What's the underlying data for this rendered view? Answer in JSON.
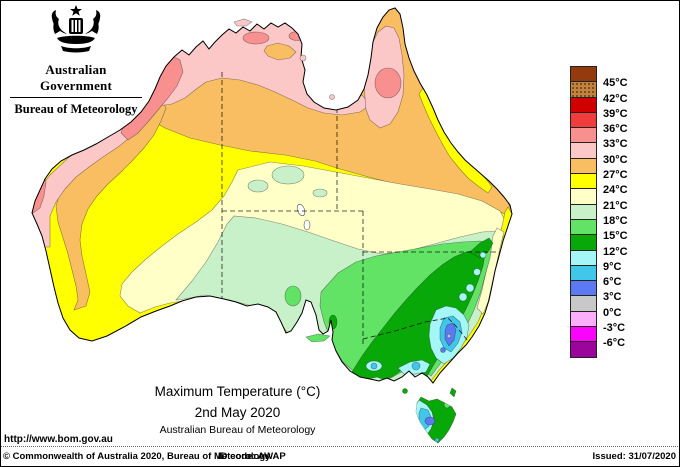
{
  "logo": {
    "gov": "Australian Government",
    "bureau": "Bureau of Meteorology"
  },
  "map_title": {
    "line1": "Maximum Temperature (°C)",
    "line2": "2nd May 2020",
    "line3": "Australian Bureau of Meteorology"
  },
  "url_text": "http://www.bom.gov.au",
  "footer": {
    "copyright": "© Commonwealth of Australia 2020, Bureau of Meteorology",
    "id_code": "ID code: AWAP",
    "issued": "Issued: 31/07/2020"
  },
  "legend": {
    "units": "°C",
    "entries": [
      {
        "label": "45°C",
        "color": "#933A0E",
        "speckled": false
      },
      {
        "label": "42°C",
        "color": "#C08440",
        "speckled": true
      },
      {
        "label": "39°C",
        "color": "#D00000",
        "speckled": false
      },
      {
        "label": "36°C",
        "color": "#F03C3C",
        "speckled": false
      },
      {
        "label": "33°C",
        "color": "#F99090",
        "speckled": false
      },
      {
        "label": "30°C",
        "color": "#FBC7C7",
        "speckled": false
      },
      {
        "label": "27°C",
        "color": "#F9BE62",
        "speckled": false
      },
      {
        "label": "24°C",
        "color": "#FFFF00",
        "speckled": false
      },
      {
        "label": "21°C",
        "color": "#FFFFC8",
        "speckled": false
      },
      {
        "label": "18°C",
        "color": "#C9F1C9",
        "speckled": false
      },
      {
        "label": "15°C",
        "color": "#62E366",
        "speckled": false
      },
      {
        "label": "12°C",
        "color": "#07A807",
        "speckled": false
      },
      {
        "label": "9°C",
        "color": "#A5F7F7",
        "speckled": false
      },
      {
        "label": "6°C",
        "color": "#40C7E9",
        "speckled": false
      },
      {
        "label": "3°C",
        "color": "#5C78F2",
        "speckled": false
      },
      {
        "label": "0°C",
        "color": "#C8C8C8",
        "speckled": false
      },
      {
        "label": "-3°C",
        "color": "#FBAFFB",
        "speckled": false
      },
      {
        "label": "-6°C",
        "color": "#FB04FB",
        "speckled": false
      },
      {
        "label": "",
        "color": "#9C059C",
        "speckled": false
      }
    ]
  },
  "colors": {
    "yellow": "#FFFF00",
    "orange": "#F9BE62",
    "pink": "#FBC7C7",
    "salmon": "#F99090",
    "cream": "#FFFFC8",
    "palegreen": "#C9F1C9",
    "lightgreen": "#62E366",
    "green": "#07A807",
    "lightcyan": "#A5F7F7",
    "cyan": "#40C7E9",
    "periwinkle": "#5C78F2",
    "gray": "#C8C8C8",
    "lake": "#FFFFFF",
    "crest": "#000000"
  }
}
